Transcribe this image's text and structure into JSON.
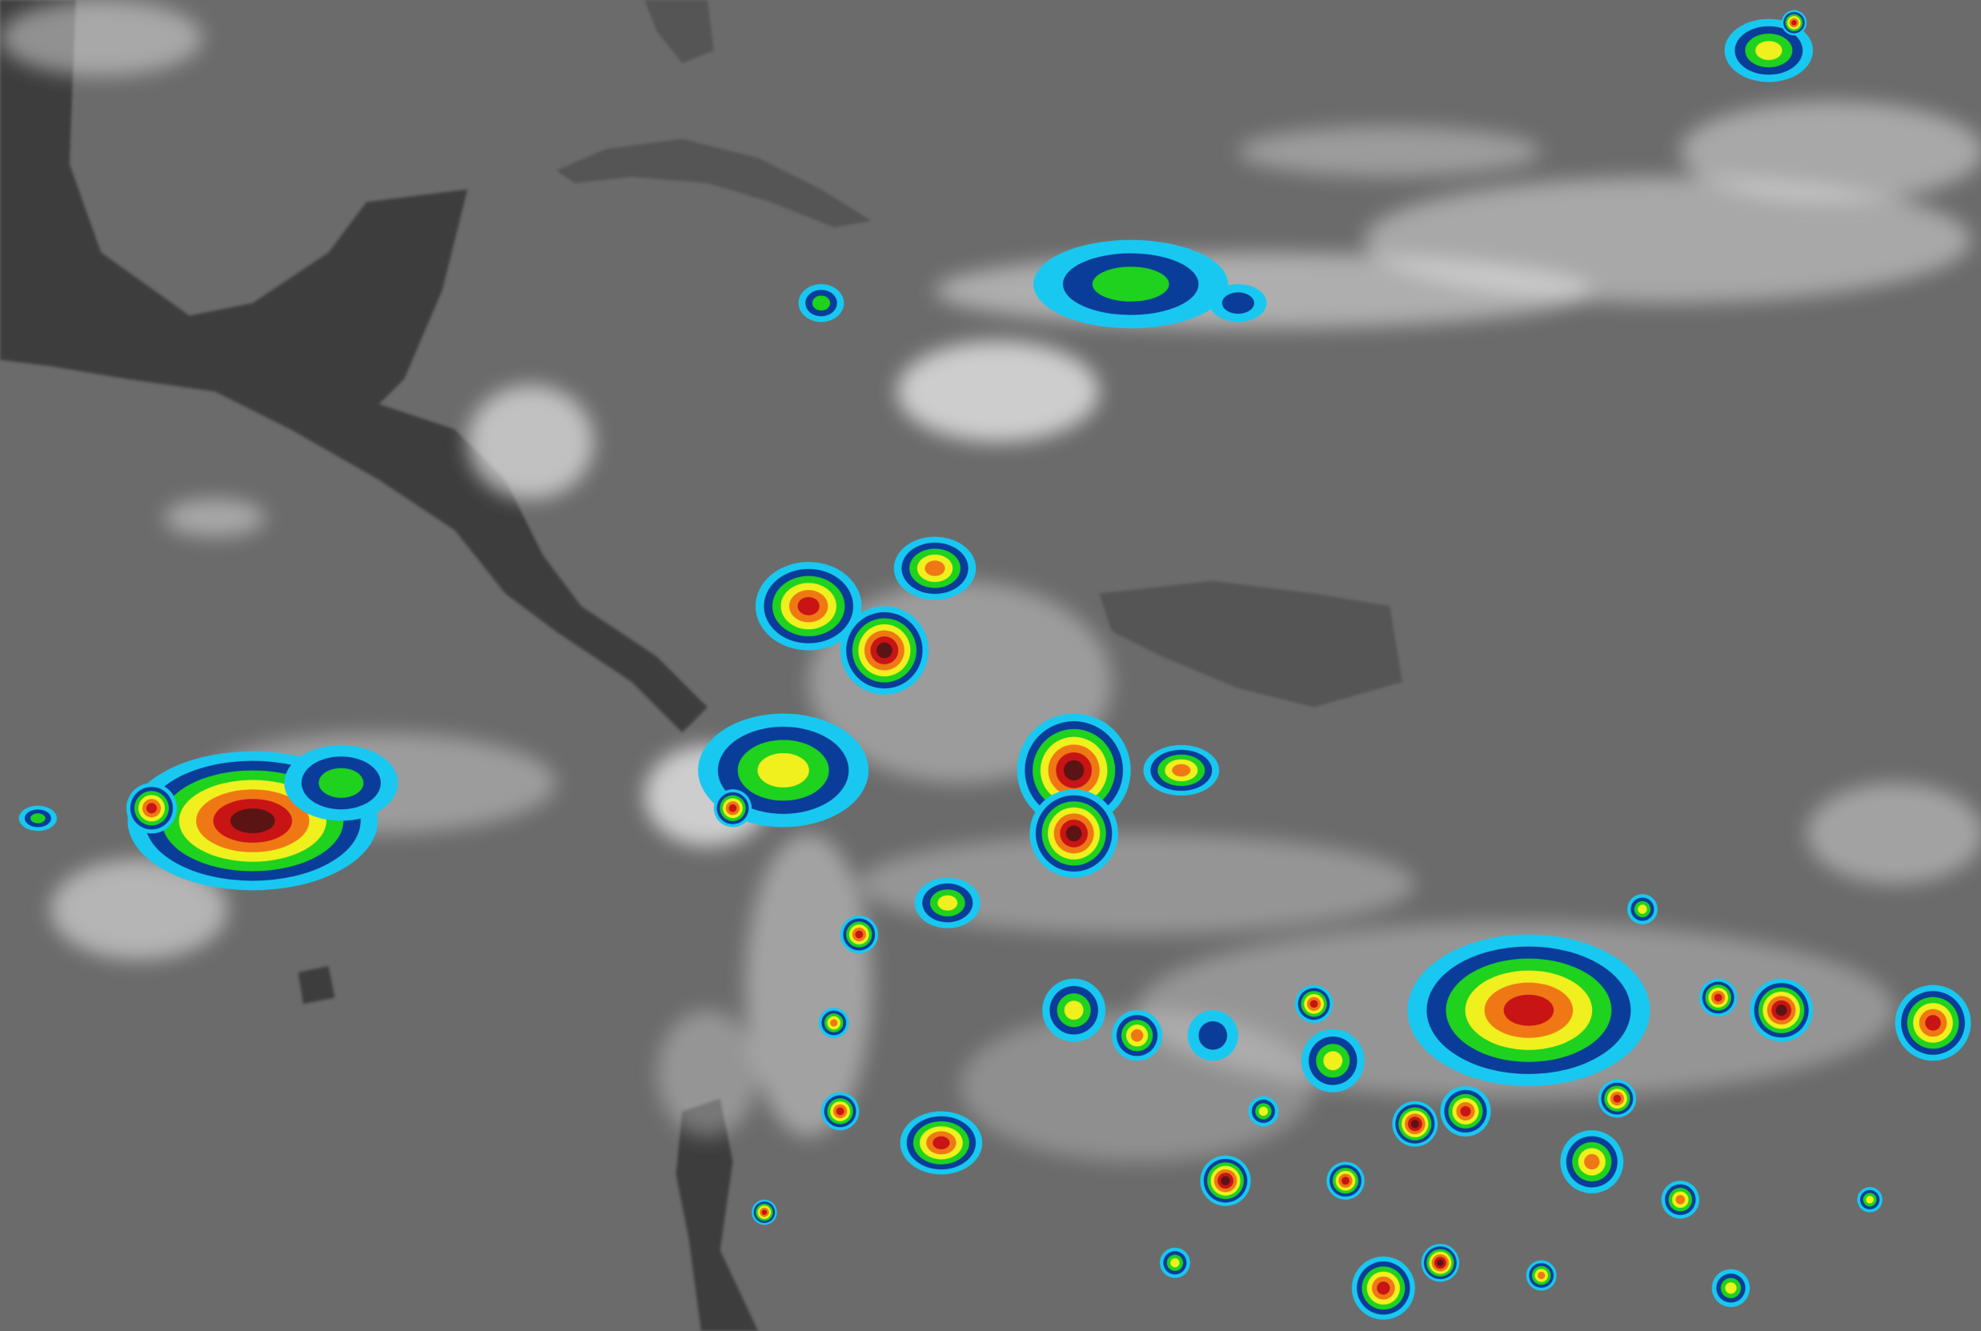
{
  "image": {
    "kind": "infrared satellite imagery",
    "colors": {
      "ocean": "#6b6b6b",
      "land_dark": "#3e3e3e",
      "land_mid": "#555555",
      "cloud_white": "#e6e6e6",
      "cold_cyan": "#19c8f0",
      "cold_blue": "#0a3c9a",
      "cold_green": "#1ed21e",
      "cold_yellow": "#f0f01e",
      "cold_orange": "#f07814",
      "cold_red": "#c81414",
      "coldest_darkred": "#5a1414"
    }
  }
}
